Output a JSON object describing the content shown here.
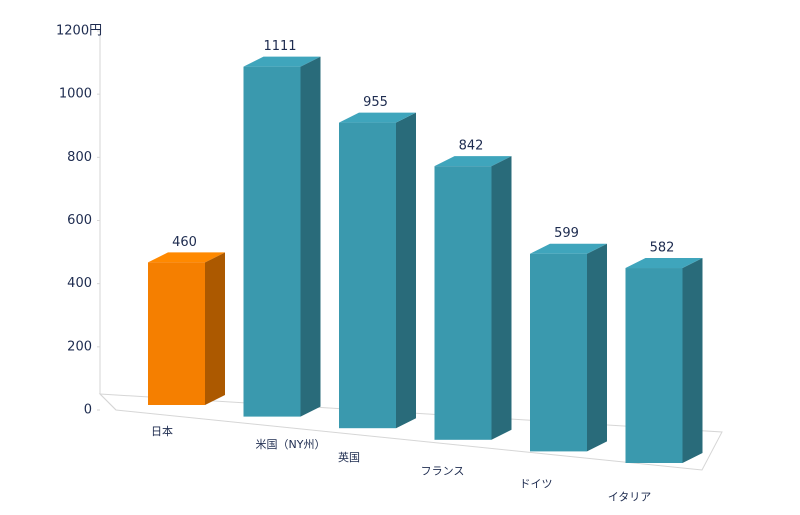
{
  "chart_data": {
    "type": "bar3d",
    "categories": [
      "日本",
      "米国（NY州）",
      "英国",
      "フランス",
      "ドイツ",
      "イタリア"
    ],
    "values": [
      460,
      1111,
      955,
      842,
      599,
      582
    ],
    "colors": [
      "#f57f00",
      "#3a99ae",
      "#3a99ae",
      "#3a99ae",
      "#3a99ae",
      "#3a99ae"
    ],
    "ylim": [
      0,
      1200
    ],
    "yticks": [
      0,
      200,
      400,
      600,
      800,
      1000,
      {
        "value": 1200,
        "label": "1200円"
      }
    ]
  }
}
